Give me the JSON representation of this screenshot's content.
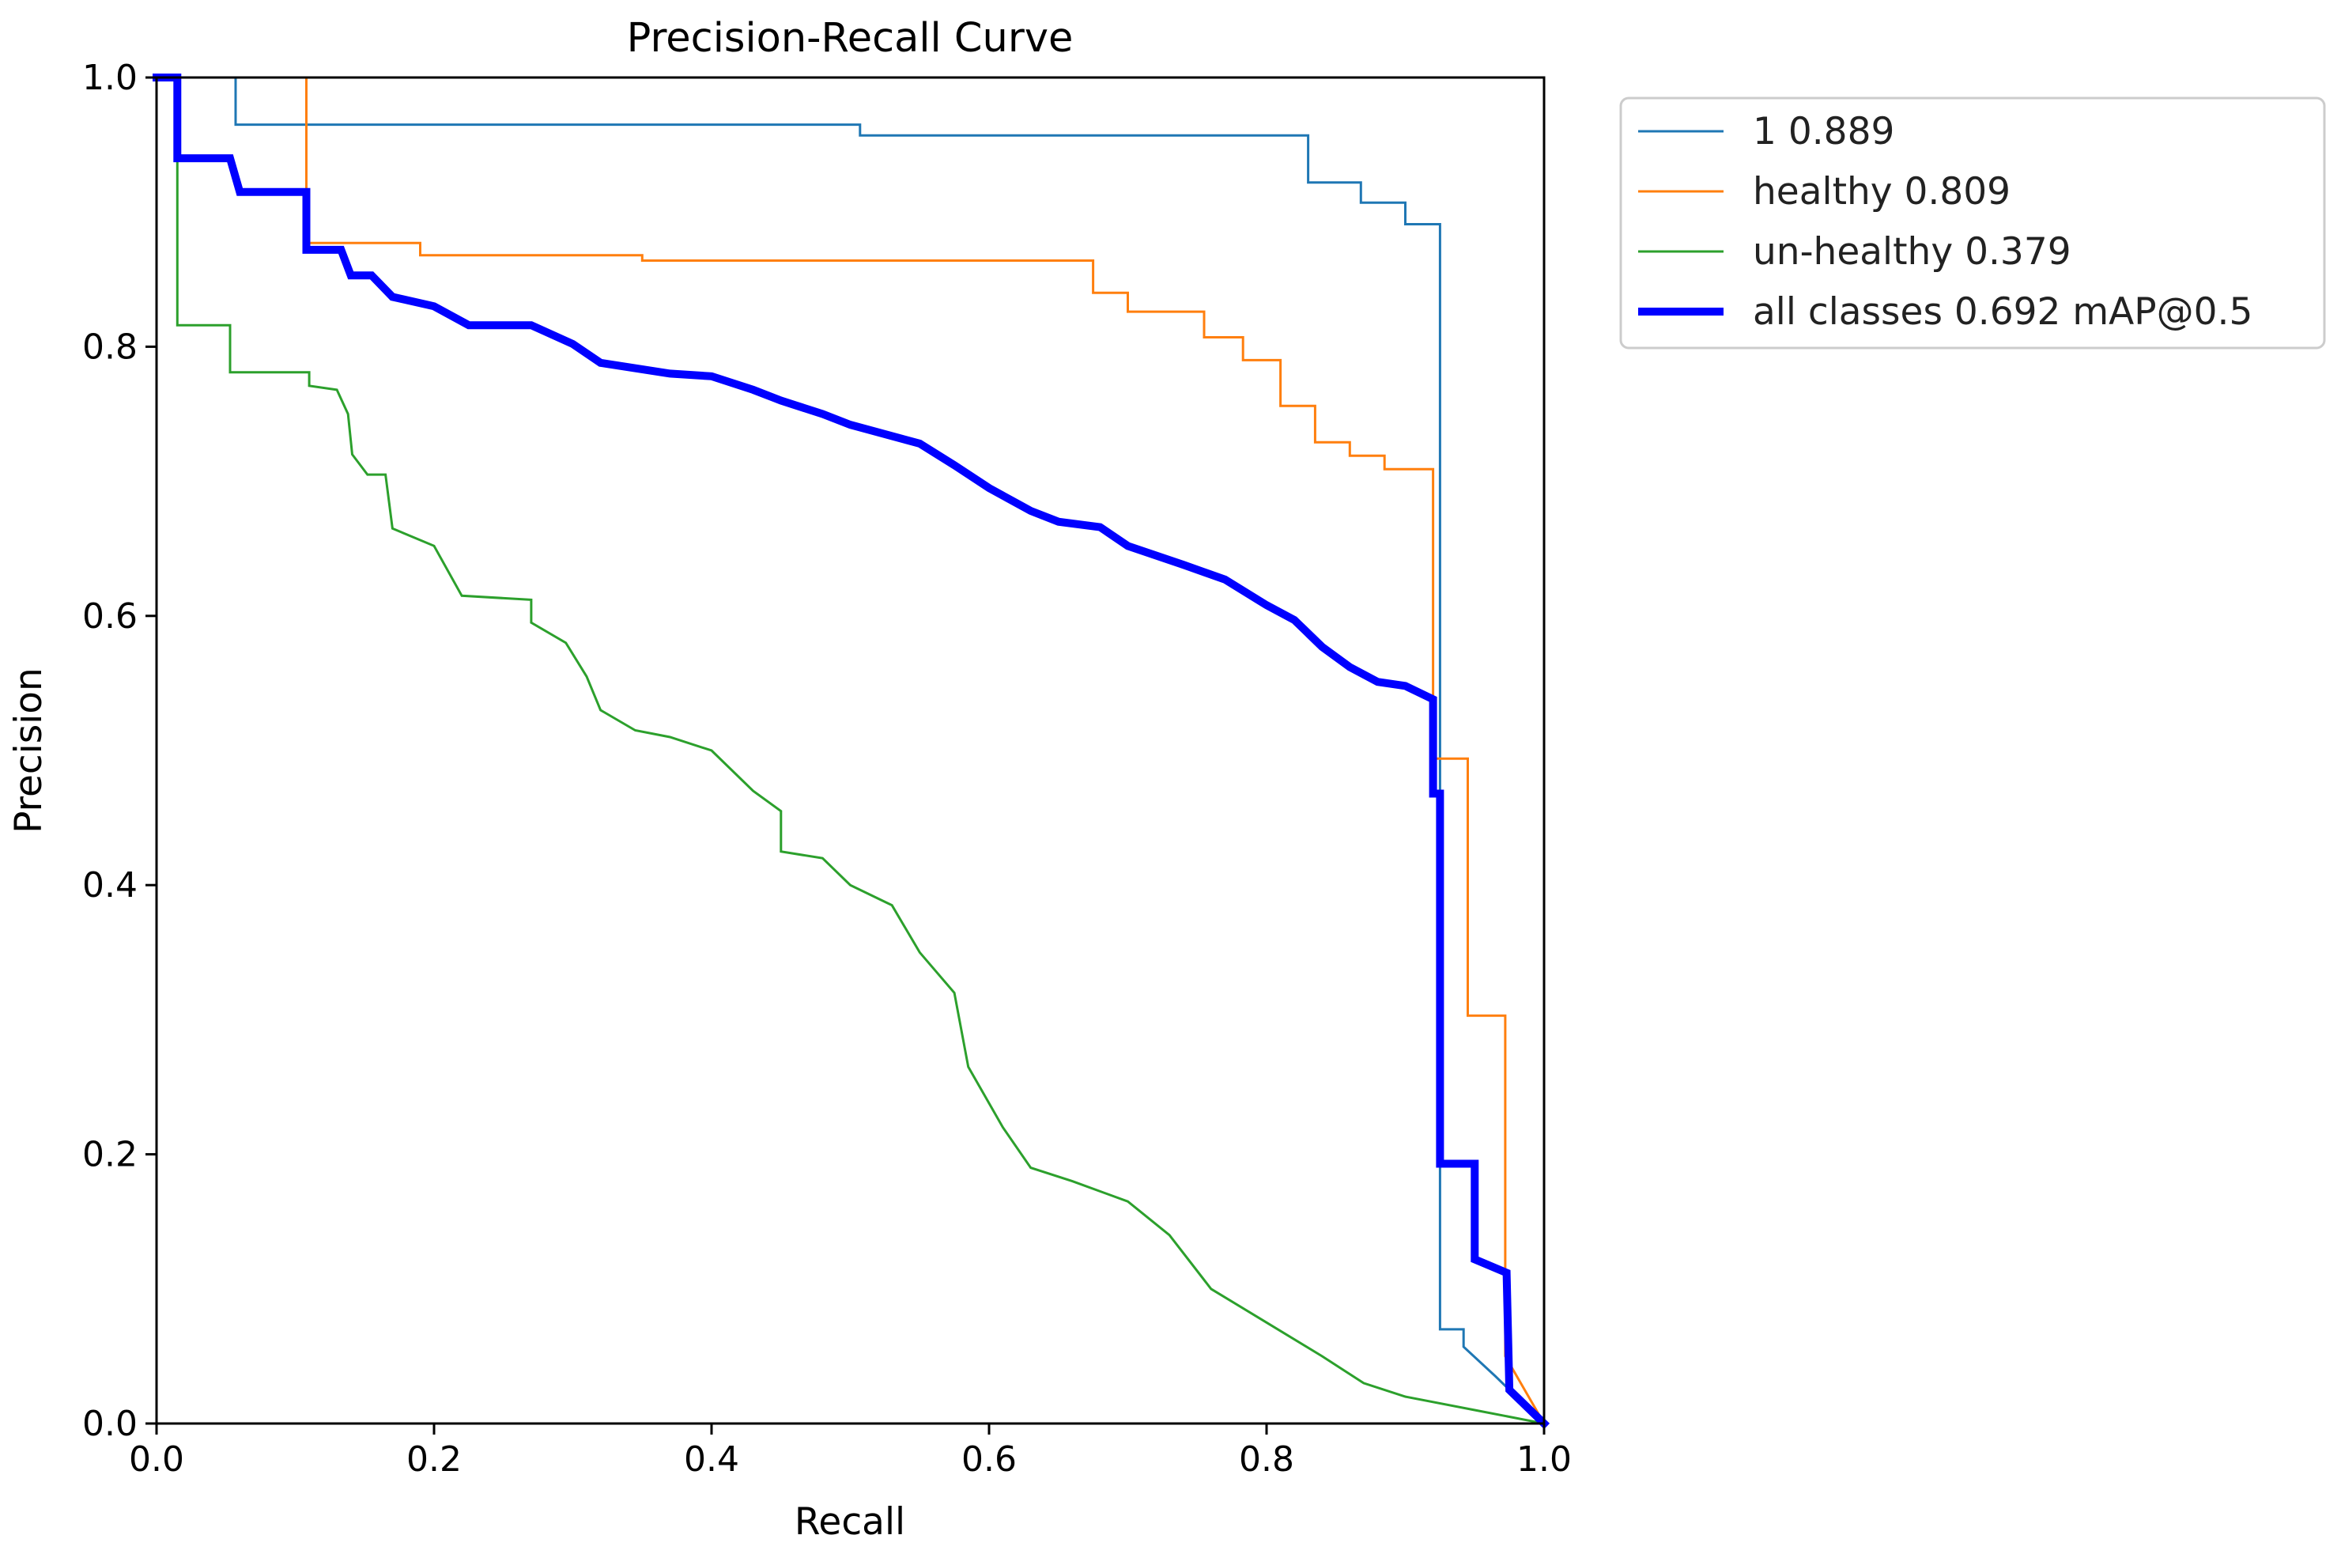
{
  "chart_data": {
    "type": "line",
    "title": "Precision-Recall Curve",
    "xlabel": "Recall",
    "ylabel": "Precision",
    "xlim": [
      0,
      1
    ],
    "ylim": [
      0,
      1
    ],
    "xticks": [
      "0.0",
      "0.2",
      "0.4",
      "0.6",
      "0.8",
      "1.0"
    ],
    "yticks": [
      "0.0",
      "0.2",
      "0.4",
      "0.6",
      "0.8",
      "1.0"
    ],
    "grid": false,
    "legend_position": "outside-upper-right",
    "series": [
      {
        "name": "1 0.889",
        "color": "#1f77b4",
        "width": "thin",
        "points": [
          [
            0.0,
            1.0
          ],
          [
            0.057,
            1.0
          ],
          [
            0.057,
            0.965
          ],
          [
            0.507,
            0.965
          ],
          [
            0.507,
            0.957
          ],
          [
            0.83,
            0.957
          ],
          [
            0.83,
            0.922
          ],
          [
            0.868,
            0.922
          ],
          [
            0.868,
            0.907
          ],
          [
            0.9,
            0.907
          ],
          [
            0.9,
            0.891
          ],
          [
            0.925,
            0.891
          ],
          [
            0.925,
            0.07
          ],
          [
            0.942,
            0.07
          ],
          [
            0.942,
            0.057
          ],
          [
            0.965,
            0.035
          ],
          [
            1.0,
            0.0
          ]
        ]
      },
      {
        "name": "healthy 0.809",
        "color": "#ff7f0e",
        "width": "thin",
        "points": [
          [
            0.0,
            1.0
          ],
          [
            0.108,
            1.0
          ],
          [
            0.108,
            0.877
          ],
          [
            0.19,
            0.877
          ],
          [
            0.19,
            0.868
          ],
          [
            0.35,
            0.868
          ],
          [
            0.35,
            0.864
          ],
          [
            0.675,
            0.864
          ],
          [
            0.675,
            0.84
          ],
          [
            0.7,
            0.84
          ],
          [
            0.7,
            0.826
          ],
          [
            0.755,
            0.826
          ],
          [
            0.755,
            0.807
          ],
          [
            0.783,
            0.807
          ],
          [
            0.783,
            0.79
          ],
          [
            0.81,
            0.79
          ],
          [
            0.81,
            0.756
          ],
          [
            0.835,
            0.756
          ],
          [
            0.835,
            0.729
          ],
          [
            0.86,
            0.729
          ],
          [
            0.86,
            0.719
          ],
          [
            0.885,
            0.719
          ],
          [
            0.885,
            0.709
          ],
          [
            0.92,
            0.709
          ],
          [
            0.92,
            0.494
          ],
          [
            0.945,
            0.494
          ],
          [
            0.945,
            0.303
          ],
          [
            0.972,
            0.303
          ],
          [
            0.972,
            0.05
          ],
          [
            1.0,
            0.0
          ]
        ]
      },
      {
        "name": "un-healthy 0.379",
        "color": "#2ca02c",
        "width": "thin",
        "points": [
          [
            0.0,
            1.0
          ],
          [
            0.015,
            1.0
          ],
          [
            0.015,
            0.816
          ],
          [
            0.053,
            0.816
          ],
          [
            0.053,
            0.781
          ],
          [
            0.11,
            0.781
          ],
          [
            0.11,
            0.771
          ],
          [
            0.13,
            0.768
          ],
          [
            0.138,
            0.75
          ],
          [
            0.141,
            0.72
          ],
          [
            0.152,
            0.705
          ],
          [
            0.165,
            0.705
          ],
          [
            0.17,
            0.665
          ],
          [
            0.2,
            0.652
          ],
          [
            0.22,
            0.615
          ],
          [
            0.27,
            0.612
          ],
          [
            0.27,
            0.595
          ],
          [
            0.295,
            0.58
          ],
          [
            0.31,
            0.555
          ],
          [
            0.32,
            0.53
          ],
          [
            0.345,
            0.515
          ],
          [
            0.37,
            0.51
          ],
          [
            0.4,
            0.5
          ],
          [
            0.43,
            0.47
          ],
          [
            0.45,
            0.455
          ],
          [
            0.45,
            0.425
          ],
          [
            0.48,
            0.42
          ],
          [
            0.5,
            0.4
          ],
          [
            0.53,
            0.385
          ],
          [
            0.55,
            0.35
          ],
          [
            0.575,
            0.32
          ],
          [
            0.585,
            0.265
          ],
          [
            0.61,
            0.22
          ],
          [
            0.63,
            0.19
          ],
          [
            0.66,
            0.18
          ],
          [
            0.7,
            0.165
          ],
          [
            0.73,
            0.14
          ],
          [
            0.76,
            0.1
          ],
          [
            0.8,
            0.075
          ],
          [
            0.84,
            0.05
          ],
          [
            0.87,
            0.03
          ],
          [
            0.9,
            0.02
          ],
          [
            0.95,
            0.01
          ],
          [
            1.0,
            0.0
          ]
        ]
      },
      {
        "name": "all classes 0.692 mAP@0.5",
        "color": "#0000ff",
        "width": "thick",
        "points": [
          [
            0.0,
            1.0
          ],
          [
            0.015,
            1.0
          ],
          [
            0.015,
            0.94
          ],
          [
            0.053,
            0.94
          ],
          [
            0.06,
            0.915
          ],
          [
            0.108,
            0.915
          ],
          [
            0.108,
            0.872
          ],
          [
            0.133,
            0.872
          ],
          [
            0.14,
            0.853
          ],
          [
            0.155,
            0.853
          ],
          [
            0.17,
            0.837
          ],
          [
            0.2,
            0.83
          ],
          [
            0.225,
            0.816
          ],
          [
            0.27,
            0.816
          ],
          [
            0.3,
            0.802
          ],
          [
            0.32,
            0.788
          ],
          [
            0.37,
            0.78
          ],
          [
            0.4,
            0.778
          ],
          [
            0.43,
            0.768
          ],
          [
            0.45,
            0.76
          ],
          [
            0.48,
            0.75
          ],
          [
            0.5,
            0.742
          ],
          [
            0.55,
            0.728
          ],
          [
            0.575,
            0.712
          ],
          [
            0.6,
            0.695
          ],
          [
            0.63,
            0.678
          ],
          [
            0.65,
            0.67
          ],
          [
            0.68,
            0.666
          ],
          [
            0.7,
            0.652
          ],
          [
            0.74,
            0.638
          ],
          [
            0.77,
            0.627
          ],
          [
            0.8,
            0.608
          ],
          [
            0.82,
            0.597
          ],
          [
            0.84,
            0.577
          ],
          [
            0.86,
            0.562
          ],
          [
            0.88,
            0.551
          ],
          [
            0.9,
            0.548
          ],
          [
            0.92,
            0.538
          ],
          [
            0.92,
            0.468
          ],
          [
            0.925,
            0.468
          ],
          [
            0.925,
            0.193
          ],
          [
            0.95,
            0.193
          ],
          [
            0.95,
            0.122
          ],
          [
            0.973,
            0.112
          ],
          [
            0.975,
            0.025
          ],
          [
            1.0,
            0.0
          ]
        ]
      }
    ]
  }
}
